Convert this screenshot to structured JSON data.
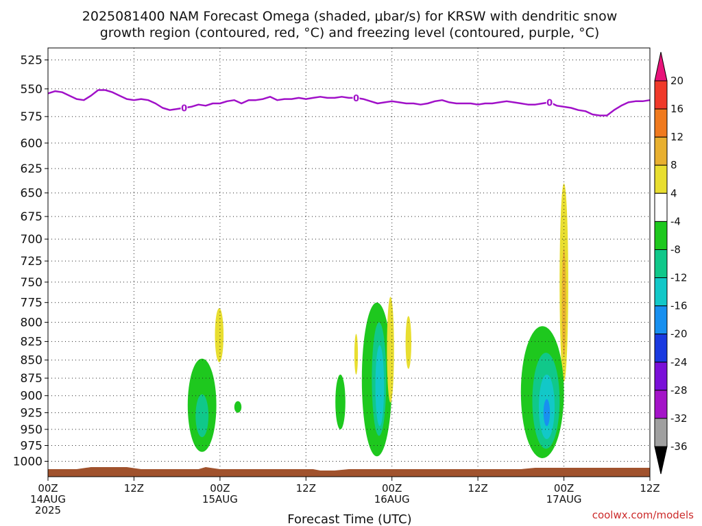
{
  "chart_data": {
    "type": "heatmap",
    "title_lines": [
      "2025081400 NAM Forecast Omega (shaded, μbar/s) for KRSW with dendritic snow",
      "growth region (contoured, red, °C) and freezing level (contoured, purple, °C)"
    ],
    "xlabel": "Forecast Time (UTC)",
    "ylabel": "",
    "credit": "coolwx.com/models",
    "y_axis": {
      "ticks": [
        525,
        550,
        575,
        600,
        625,
        650,
        675,
        700,
        725,
        750,
        775,
        800,
        825,
        850,
        875,
        900,
        925,
        950,
        975,
        1000
      ],
      "range": [
        515,
        1025
      ],
      "scale": "log-pressure, inverted"
    },
    "x_axis": {
      "range_hours": [
        0,
        84
      ],
      "ticks": [
        {
          "hour": 0,
          "lines": [
            "00Z",
            "14AUG",
            "2025"
          ]
        },
        {
          "hour": 12,
          "lines": [
            "12Z"
          ]
        },
        {
          "hour": 24,
          "lines": [
            "00Z",
            "15AUG"
          ]
        },
        {
          "hour": 36,
          "lines": [
            "12Z"
          ]
        },
        {
          "hour": 48,
          "lines": [
            "00Z",
            "16AUG"
          ]
        },
        {
          "hour": 60,
          "lines": [
            "12Z"
          ]
        },
        {
          "hour": 72,
          "lines": [
            "00Z",
            "17AUG"
          ]
        },
        {
          "hour": 84,
          "lines": [
            "12Z"
          ]
        }
      ]
    },
    "grid": true,
    "colorbar": {
      "placement": "right",
      "labels": [
        "20",
        "16",
        "12",
        "8",
        "4",
        "-4",
        "-8",
        "-12",
        "-16",
        "-20",
        "-24",
        "-28",
        "-32",
        "-36"
      ],
      "colors": [
        "#e8137a",
        "#f03a2a",
        "#f07a1e",
        "#e8b030",
        "#e8de30",
        "#ffffff",
        "#1ec81e",
        "#10c88a",
        "#12c8c8",
        "#1890f0",
        "#1a3ae0",
        "#7a10d8",
        "#a414c8",
        "#a0a0a0",
        "#000000"
      ]
    },
    "freezing_level": {
      "color": "#a010c8",
      "label": "0",
      "label_hours": [
        19,
        43,
        70
      ],
      "points": [
        [
          0,
          554
        ],
        [
          1,
          552
        ],
        [
          2,
          553
        ],
        [
          3,
          556
        ],
        [
          4,
          559
        ],
        [
          5,
          560
        ],
        [
          6,
          556
        ],
        [
          7,
          551
        ],
        [
          8,
          551
        ],
        [
          9,
          553
        ],
        [
          10,
          556
        ],
        [
          11,
          559
        ],
        [
          12,
          560
        ],
        [
          13,
          559
        ],
        [
          14,
          560
        ],
        [
          15,
          563
        ],
        [
          16,
          567
        ],
        [
          17,
          569
        ],
        [
          18,
          568
        ],
        [
          19,
          567
        ],
        [
          20,
          566
        ],
        [
          21,
          564
        ],
        [
          22,
          565
        ],
        [
          23,
          563
        ],
        [
          24,
          563
        ],
        [
          25,
          561
        ],
        [
          26,
          560
        ],
        [
          27,
          563
        ],
        [
          28,
          560
        ],
        [
          29,
          560
        ],
        [
          30,
          559
        ],
        [
          31,
          557
        ],
        [
          32,
          560
        ],
        [
          33,
          559
        ],
        [
          34,
          559
        ],
        [
          35,
          558
        ],
        [
          36,
          559
        ],
        [
          37,
          558
        ],
        [
          38,
          557
        ],
        [
          39,
          558
        ],
        [
          40,
          558
        ],
        [
          41,
          557
        ],
        [
          42,
          558
        ],
        [
          43,
          558
        ],
        [
          44,
          559
        ],
        [
          45,
          561
        ],
        [
          46,
          563
        ],
        [
          47,
          562
        ],
        [
          48,
          561
        ],
        [
          49,
          562
        ],
        [
          50,
          563
        ],
        [
          51,
          563
        ],
        [
          52,
          564
        ],
        [
          53,
          563
        ],
        [
          54,
          561
        ],
        [
          55,
          560
        ],
        [
          56,
          562
        ],
        [
          57,
          563
        ],
        [
          58,
          563
        ],
        [
          59,
          563
        ],
        [
          60,
          564
        ],
        [
          61,
          563
        ],
        [
          62,
          563
        ],
        [
          63,
          562
        ],
        [
          64,
          561
        ],
        [
          65,
          562
        ],
        [
          66,
          563
        ],
        [
          67,
          564
        ],
        [
          68,
          564
        ],
        [
          69,
          563
        ],
        [
          70,
          562
        ],
        [
          71,
          565
        ],
        [
          72,
          566
        ],
        [
          73,
          567
        ],
        [
          74,
          569
        ],
        [
          75,
          570
        ],
        [
          76,
          573
        ],
        [
          77,
          574
        ],
        [
          78,
          574
        ],
        [
          79,
          569
        ],
        [
          80,
          565
        ],
        [
          81,
          562
        ],
        [
          82,
          561
        ],
        [
          83,
          561
        ],
        [
          84,
          560
        ]
      ]
    },
    "shaded_regions": [
      {
        "level": -4,
        "color": "#1ec81e",
        "center": [
          21.5,
          912
        ],
        "half_width": 2.0,
        "top": 848,
        "bottom": 985
      },
      {
        "level": -8,
        "color": "#10c88a",
        "center": [
          21.5,
          928
        ],
        "half_width": 0.9,
        "top": 898,
        "bottom": 962
      },
      {
        "level": -4,
        "color": "#1ec81e",
        "center": [
          26.5,
          916
        ],
        "half_width": 0.5,
        "top": 908,
        "bottom": 925
      },
      {
        "level": 4,
        "color": "#e8de30",
        "center": [
          23.9,
          815
        ],
        "half_width": 0.6,
        "top": 782,
        "bottom": 853
      },
      {
        "level": -4,
        "color": "#1ec81e",
        "center": [
          40.8,
          910
        ],
        "half_width": 0.7,
        "top": 870,
        "bottom": 950
      },
      {
        "level": -4,
        "color": "#1ec81e",
        "center": [
          45.9,
          880
        ],
        "half_width": 2.1,
        "top": 775,
        "bottom": 992
      },
      {
        "level": -8,
        "color": "#10c88a",
        "center": [
          46.2,
          890
        ],
        "half_width": 1.0,
        "top": 800,
        "bottom": 960
      },
      {
        "level": -12,
        "color": "#12c8c8",
        "center": [
          46.3,
          895
        ],
        "half_width": 0.6,
        "top": 830,
        "bottom": 945
      },
      {
        "level": 4,
        "color": "#e8de30",
        "center": [
          43.0,
          835
        ],
        "half_width": 0.25,
        "top": 815,
        "bottom": 870
      },
      {
        "level": 4,
        "color": "#e8de30",
        "center": [
          47.8,
          835
        ],
        "half_width": 0.5,
        "top": 768,
        "bottom": 910
      },
      {
        "level": 4,
        "color": "#e8de30",
        "center": [
          50.3,
          825
        ],
        "half_width": 0.4,
        "top": 792,
        "bottom": 862
      },
      {
        "level": 4,
        "color": "#e8de30",
        "center": [
          72.0,
          760
        ],
        "half_width": 0.6,
        "top": 640,
        "bottom": 880
      },
      {
        "level": 8,
        "color": "#e8b030",
        "center": [
          72.0,
          765
        ],
        "half_width": 0.3,
        "top": 710,
        "bottom": 845
      },
      {
        "level": -4,
        "color": "#1ec81e",
        "center": [
          69.0,
          910
        ],
        "half_width": 3.0,
        "top": 805,
        "bottom": 995
      },
      {
        "level": -8,
        "color": "#10c88a",
        "center": [
          69.5,
          920
        ],
        "half_width": 1.9,
        "top": 840,
        "bottom": 980
      },
      {
        "level": -12,
        "color": "#12c8c8",
        "center": [
          69.6,
          925
        ],
        "half_width": 1.1,
        "top": 870,
        "bottom": 965
      },
      {
        "level": -16,
        "color": "#1890f0",
        "center": [
          69.6,
          925
        ],
        "half_width": 0.45,
        "top": 905,
        "bottom": 945
      }
    ],
    "terrain_color": "#a0522d"
  }
}
